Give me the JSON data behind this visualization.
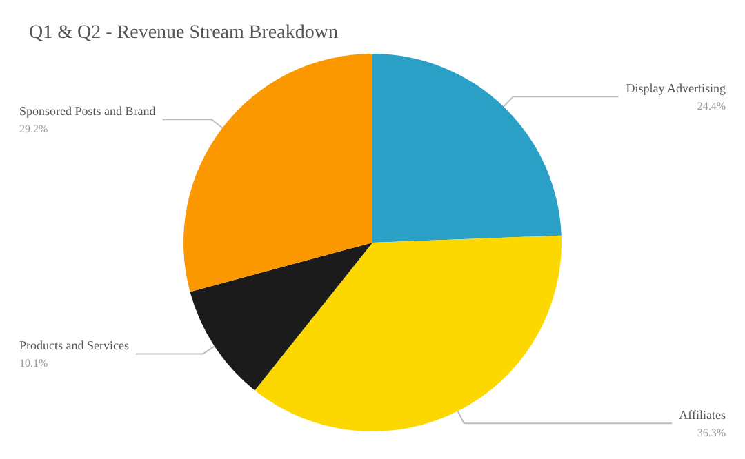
{
  "chart_data": {
    "type": "pie",
    "title": "Q1 & Q2 - Revenue Stream Breakdown",
    "categories": [
      "Display Advertising",
      "Affiliates",
      "Products and Services",
      "Sponsored Posts and Brand"
    ],
    "values": [
      24.4,
      36.3,
      10.1,
      29.2
    ],
    "value_labels": [
      "24.4%",
      "36.3%",
      "10.1%",
      "29.2%"
    ],
    "colors": [
      "#2aa0c6",
      "#fcd700",
      "#1b1b1b",
      "#fb9800"
    ],
    "legend": false
  }
}
